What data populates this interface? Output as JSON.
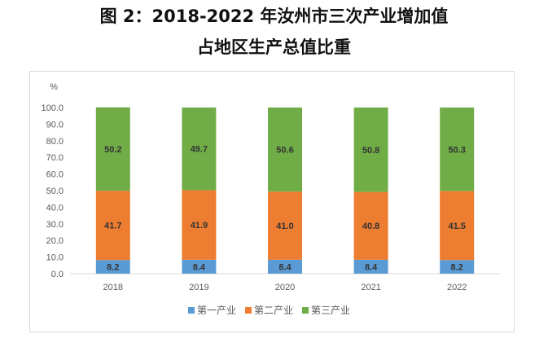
{
  "chart_data": {
    "type": "bar",
    "stacked": true,
    "title": "图 2：2018-2022 年汝州市三次产业增加值",
    "subtitle": "占地区生产总值比重",
    "ylabel": "%",
    "ylim": [
      0,
      100
    ],
    "yticks": [
      "0.0",
      "10.0",
      "20.0",
      "30.0",
      "40.0",
      "50.0",
      "60.0",
      "70.0",
      "80.0",
      "90.0",
      "100.0"
    ],
    "categories": [
      "2018",
      "2019",
      "2020",
      "2021",
      "2022"
    ],
    "series": [
      {
        "name": "第一产业",
        "color": "#5b9bd5",
        "values": [
          8.2,
          8.4,
          8.4,
          8.4,
          8.2
        ]
      },
      {
        "name": "第二产业",
        "color": "#ed7d31",
        "values": [
          41.7,
          41.9,
          41.0,
          40.8,
          41.5
        ]
      },
      {
        "name": "第三产业",
        "color": "#70ad47",
        "values": [
          50.2,
          49.7,
          50.6,
          50.8,
          50.3
        ]
      }
    ],
    "legend": "bottom",
    "grid": false
  }
}
